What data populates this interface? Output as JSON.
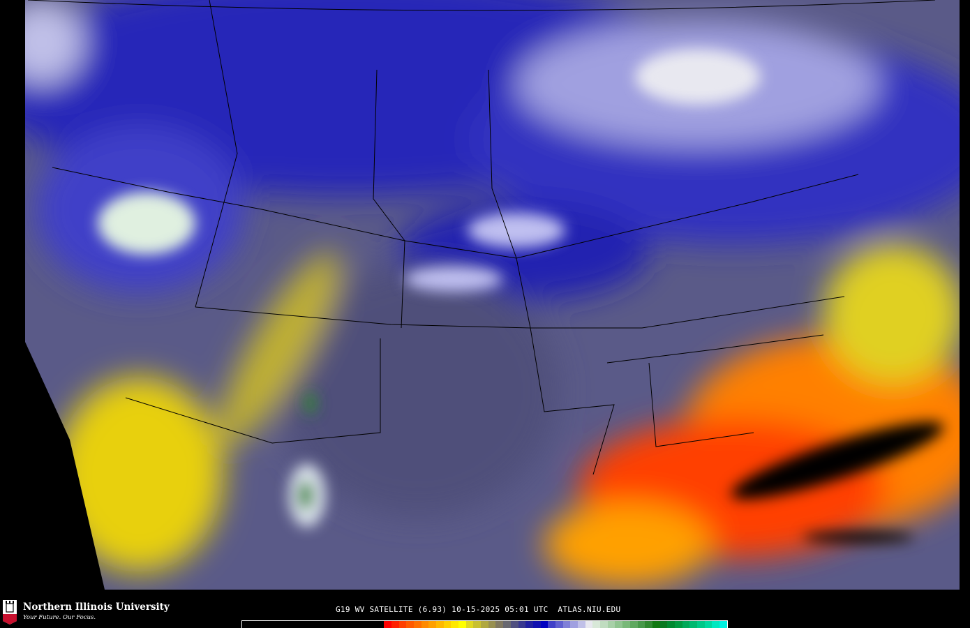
{
  "map": {
    "product": "GOES-19 water vapor satellite imagery, CONUS",
    "background_color": "#000000"
  },
  "footer": {
    "logo_text": "NIU",
    "university": "Northern Illinois University",
    "tagline": "Your Future. Our Focus.",
    "caption": "G19 WV SATELLITE (6.93) 10-15-2025 05:01 UTC  ATLAS.NIU.EDU"
  },
  "colorbar": {
    "colors": [
      "#000000",
      "#ff0000",
      "#ff2000",
      "#ff4000",
      "#ff5a00",
      "#ff7000",
      "#ff8a00",
      "#ffa000",
      "#ffb800",
      "#ffd000",
      "#ffe800",
      "#ffff00",
      "#e0d820",
      "#c8c030",
      "#b0a840",
      "#989050",
      "#807860",
      "#686870",
      "#505080",
      "#383890",
      "#2020a0",
      "#1010b0",
      "#0000c0",
      "#4040c8",
      "#6060d0",
      "#8080d8",
      "#a0a0e0",
      "#c0c0e8",
      "#e8e8f0",
      "#d8e8d8",
      "#c0dcc0",
      "#a8d0a8",
      "#90c490",
      "#78b878",
      "#60a860",
      "#48984a",
      "#308830",
      "#107810",
      "#087820",
      "#008830",
      "#009840",
      "#00a858",
      "#00b870",
      "#00c888",
      "#00d8a0",
      "#00e8c0",
      "#00f0e0"
    ]
  }
}
